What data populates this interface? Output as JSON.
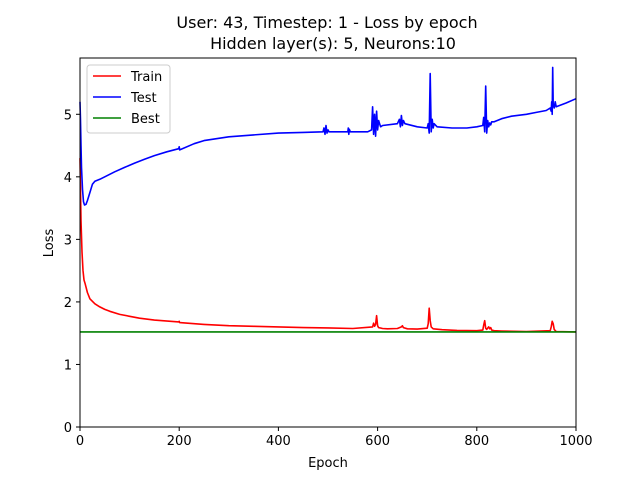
{
  "chart_data": {
    "type": "line",
    "title": "User: 43, Timestep: 1 - Loss by epoch",
    "subtitle": "Hidden layer(s): 5, Neurons:10",
    "xlabel": "Epoch",
    "ylabel": "Loss",
    "xlim": [
      0,
      1000
    ],
    "ylim": [
      0,
      5.9
    ],
    "xticks": [
      0,
      200,
      400,
      600,
      800,
      1000
    ],
    "yticks": [
      0,
      1,
      2,
      3,
      4,
      5
    ],
    "grid": false,
    "legend": "top-left",
    "series": [
      {
        "name": "Train",
        "color": "#ff0000",
        "x": [
          0,
          2,
          4,
          6,
          8,
          10,
          15,
          20,
          30,
          40,
          50,
          60,
          80,
          100,
          120,
          150,
          199,
          200,
          201,
          250,
          300,
          350,
          400,
          450,
          500,
          550,
          590,
          592,
          594,
          596,
          598,
          600,
          602,
          610,
          620,
          640,
          648,
          650,
          652,
          660,
          680,
          700,
          702,
          704,
          706,
          708,
          712,
          730,
          760,
          800,
          812,
          814,
          816,
          818,
          820,
          824,
          826,
          828,
          830,
          835,
          850,
          900,
          948,
          950,
          952,
          954,
          956,
          960,
          1000
        ],
        "y": [
          4.3,
          3.3,
          2.8,
          2.5,
          2.35,
          2.3,
          2.15,
          2.05,
          1.97,
          1.92,
          1.88,
          1.85,
          1.8,
          1.77,
          1.74,
          1.71,
          1.68,
          1.69,
          1.67,
          1.64,
          1.62,
          1.61,
          1.6,
          1.59,
          1.585,
          1.575,
          1.6,
          1.66,
          1.61,
          1.64,
          1.78,
          1.62,
          1.59,
          1.575,
          1.57,
          1.575,
          1.6,
          1.62,
          1.59,
          1.57,
          1.565,
          1.58,
          1.65,
          1.9,
          1.7,
          1.6,
          1.57,
          1.555,
          1.545,
          1.54,
          1.55,
          1.63,
          1.7,
          1.58,
          1.56,
          1.6,
          1.57,
          1.59,
          1.55,
          1.54,
          1.535,
          1.525,
          1.54,
          1.6,
          1.69,
          1.65,
          1.56,
          1.525,
          1.52
        ]
      },
      {
        "name": "Test",
        "color": "#0000ff",
        "x": [
          0,
          1,
          2,
          3,
          5,
          7,
          9,
          12,
          15,
          20,
          25,
          30,
          40,
          50,
          70,
          90,
          110,
          130,
          150,
          175,
          199,
          200,
          201,
          230,
          250,
          275,
          300,
          350,
          400,
          450,
          490,
          492,
          494,
          496,
          498,
          500,
          502,
          540,
          541,
          542,
          543,
          545,
          580,
          588,
          590,
          592,
          594,
          596,
          598,
          600,
          602,
          604,
          606,
          610,
          640,
          644,
          646,
          648,
          650,
          652,
          655,
          680,
          700,
          702,
          704,
          706,
          708,
          710,
          712,
          714,
          720,
          750,
          780,
          800,
          812,
          814,
          816,
          818,
          820,
          822,
          824,
          826,
          828,
          830,
          835,
          850,
          870,
          900,
          920,
          940,
          948,
          950,
          951,
          952,
          953,
          954,
          956,
          958,
          960,
          980,
          1000
        ],
        "y": [
          5.2,
          4.9,
          4.5,
          4.15,
          3.8,
          3.6,
          3.55,
          3.56,
          3.62,
          3.75,
          3.88,
          3.93,
          3.96,
          4.0,
          4.08,
          4.15,
          4.22,
          4.28,
          4.34,
          4.4,
          4.45,
          4.48,
          4.43,
          4.53,
          4.58,
          4.61,
          4.64,
          4.67,
          4.7,
          4.71,
          4.72,
          4.78,
          4.68,
          4.82,
          4.7,
          4.75,
          4.72,
          4.72,
          4.78,
          4.68,
          4.76,
          4.72,
          4.72,
          4.75,
          5.12,
          4.68,
          5.0,
          4.65,
          5.05,
          4.75,
          4.9,
          4.85,
          4.8,
          4.82,
          4.85,
          4.92,
          4.8,
          4.98,
          4.82,
          4.9,
          4.85,
          4.8,
          4.78,
          4.85,
          4.7,
          5.65,
          4.72,
          4.92,
          4.78,
          4.85,
          4.8,
          4.78,
          4.78,
          4.8,
          4.82,
          4.95,
          4.72,
          5.45,
          4.7,
          4.9,
          4.8,
          4.86,
          4.83,
          4.88,
          4.88,
          4.93,
          4.97,
          5.0,
          5.03,
          5.06,
          5.1,
          5.05,
          5.2,
          5.0,
          5.75,
          5.15,
          5.1,
          5.2,
          5.12,
          5.18,
          5.25
        ]
      },
      {
        "name": "Best",
        "color": "#008000",
        "x": [
          0,
          1000
        ],
        "y": [
          1.52,
          1.52
        ]
      }
    ]
  }
}
